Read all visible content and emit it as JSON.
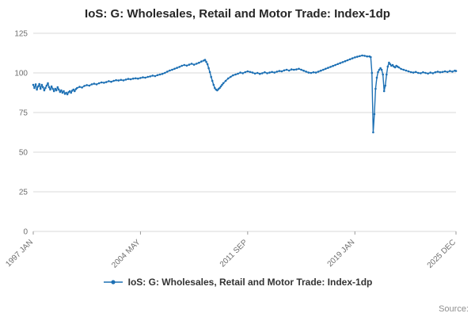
{
  "title": "IoS: G: Wholesales, Retail and Motor Trade: Index-1dp",
  "legend": {
    "label": "IoS: G: Wholesales, Retail and Motor Trade: Index-1dp"
  },
  "source_label": "Source:",
  "colors": {
    "line": "#1d70b4",
    "grid": "#d9d9d9",
    "axis_text": "#6e6e6e",
    "tick": "#9a9a9a"
  },
  "chart_data": {
    "type": "line",
    "title": "IoS: G: Wholesales, Retail and Motor Trade: Index-1dp",
    "xlabel": "",
    "ylabel": "",
    "ylim": [
      0,
      125
    ],
    "yticks": [
      0,
      25,
      50,
      75,
      100,
      125
    ],
    "grid": true,
    "legend_position": "bottom",
    "x_total_months": 347,
    "x_start": "1997 JAN",
    "x_end": "2025 DEC",
    "xticks": [
      {
        "m": 0,
        "label": "1997 JAN"
      },
      {
        "m": 88,
        "label": "2004 MAY"
      },
      {
        "m": 176,
        "label": "2011 SEP"
      },
      {
        "m": 264,
        "label": "2019 JAN"
      },
      {
        "m": 347,
        "label": "2025 DEC"
      }
    ],
    "series": [
      {
        "name": "IoS: G: Wholesales, Retail and Motor Trade: Index-1dp",
        "points": [
          [
            0,
            92.5
          ],
          [
            1,
            90.5
          ],
          [
            2,
            92.8
          ],
          [
            3,
            89.5
          ],
          [
            4,
            91.5
          ],
          [
            5,
            93.0
          ],
          [
            6,
            90.0
          ],
          [
            7,
            92.5
          ],
          [
            8,
            91.0
          ],
          [
            9,
            89.0
          ],
          [
            10,
            90.5
          ],
          [
            11,
            92.0
          ],
          [
            12,
            93.5
          ],
          [
            13,
            91.0
          ],
          [
            14,
            89.5
          ],
          [
            15,
            91.5
          ],
          [
            16,
            90.0
          ],
          [
            17,
            88.5
          ],
          [
            18,
            90.0
          ],
          [
            19,
            89.0
          ],
          [
            20,
            91.0
          ],
          [
            21,
            89.5
          ],
          [
            22,
            88.0
          ],
          [
            23,
            89.0
          ],
          [
            24,
            87.5
          ],
          [
            25,
            88.5
          ],
          [
            26,
            86.8
          ],
          [
            27,
            87.5
          ],
          [
            28,
            86.5
          ],
          [
            29,
            87.8
          ],
          [
            30,
            88.5
          ],
          [
            31,
            87.5
          ],
          [
            32,
            88.8
          ],
          [
            33,
            89.5
          ],
          [
            34,
            88.5
          ],
          [
            35,
            89.8
          ],
          [
            36,
            90.5
          ],
          [
            38,
            91.2
          ],
          [
            40,
            90.8
          ],
          [
            42,
            91.8
          ],
          [
            44,
            92.3
          ],
          [
            46,
            92.0
          ],
          [
            48,
            92.8
          ],
          [
            50,
            93.2
          ],
          [
            52,
            92.8
          ],
          [
            54,
            93.5
          ],
          [
            56,
            94.0
          ],
          [
            58,
            93.8
          ],
          [
            60,
            94.2
          ],
          [
            62,
            94.8
          ],
          [
            64,
            94.4
          ],
          [
            66,
            95.0
          ],
          [
            68,
            95.4
          ],
          [
            70,
            95.2
          ],
          [
            72,
            95.6
          ],
          [
            74,
            95.3
          ],
          [
            76,
            95.8
          ],
          [
            78,
            96.2
          ],
          [
            80,
            96.0
          ],
          [
            82,
            96.4
          ],
          [
            84,
            96.6
          ],
          [
            86,
            96.4
          ],
          [
            88,
            96.8
          ],
          [
            90,
            97.2
          ],
          [
            92,
            97.0
          ],
          [
            94,
            97.5
          ],
          [
            96,
            97.8
          ],
          [
            98,
            98.3
          ],
          [
            100,
            98.0
          ],
          [
            102,
            98.6
          ],
          [
            104,
            99.0
          ],
          [
            106,
            99.4
          ],
          [
            108,
            100.0
          ],
          [
            110,
            100.8
          ],
          [
            112,
            101.5
          ],
          [
            114,
            102.0
          ],
          [
            116,
            102.6
          ],
          [
            118,
            103.2
          ],
          [
            120,
            103.8
          ],
          [
            122,
            104.5
          ],
          [
            124,
            105.0
          ],
          [
            126,
            104.6
          ],
          [
            128,
            105.2
          ],
          [
            130,
            105.8
          ],
          [
            132,
            105.2
          ],
          [
            134,
            105.8
          ],
          [
            136,
            106.4
          ],
          [
            138,
            107.2
          ],
          [
            140,
            107.8
          ],
          [
            141,
            108.2
          ],
          [
            142,
            107.0
          ],
          [
            143,
            105.5
          ],
          [
            144,
            103.0
          ],
          [
            145,
            100.5
          ],
          [
            146,
            97.5
          ],
          [
            147,
            95.0
          ],
          [
            148,
            92.5
          ],
          [
            149,
            90.5
          ],
          [
            150,
            89.5
          ],
          [
            151,
            89.0
          ],
          [
            152,
            89.8
          ],
          [
            153,
            90.5
          ],
          [
            154,
            91.5
          ],
          [
            155,
            92.5
          ],
          [
            156,
            93.5
          ],
          [
            158,
            95.0
          ],
          [
            160,
            96.5
          ],
          [
            162,
            97.5
          ],
          [
            164,
            98.5
          ],
          [
            166,
            99.0
          ],
          [
            168,
            99.5
          ],
          [
            170,
            100.2
          ],
          [
            172,
            99.8
          ],
          [
            174,
            100.5
          ],
          [
            176,
            101.0
          ],
          [
            178,
            100.6
          ],
          [
            180,
            100.2
          ],
          [
            182,
            99.6
          ],
          [
            184,
            100.0
          ],
          [
            186,
            99.4
          ],
          [
            188,
            99.8
          ],
          [
            190,
            100.4
          ],
          [
            192,
            99.8
          ],
          [
            194,
            100.2
          ],
          [
            196,
            100.6
          ],
          [
            198,
            100.2
          ],
          [
            200,
            100.8
          ],
          [
            202,
            101.2
          ],
          [
            204,
            101.0
          ],
          [
            206,
            101.6
          ],
          [
            208,
            102.0
          ],
          [
            210,
            101.5
          ],
          [
            212,
            102.2
          ],
          [
            214,
            102.0
          ],
          [
            216,
            102.2
          ],
          [
            218,
            102.6
          ],
          [
            220,
            102.0
          ],
          [
            222,
            101.4
          ],
          [
            224,
            100.8
          ],
          [
            226,
            100.2
          ],
          [
            228,
            100.0
          ],
          [
            230,
            100.4
          ],
          [
            232,
            100.2
          ],
          [
            234,
            100.8
          ],
          [
            236,
            101.4
          ],
          [
            238,
            102.0
          ],
          [
            240,
            102.6
          ],
          [
            242,
            103.2
          ],
          [
            244,
            103.8
          ],
          [
            246,
            104.4
          ],
          [
            248,
            105.0
          ],
          [
            250,
            105.6
          ],
          [
            252,
            106.2
          ],
          [
            254,
            106.8
          ],
          [
            256,
            107.4
          ],
          [
            258,
            108.0
          ],
          [
            260,
            108.6
          ],
          [
            262,
            109.2
          ],
          [
            264,
            109.8
          ],
          [
            266,
            110.2
          ],
          [
            268,
            110.6
          ],
          [
            270,
            111.0
          ],
          [
            272,
            110.8
          ],
          [
            274,
            110.4
          ],
          [
            276,
            110.4
          ],
          [
            277,
            110.0
          ],
          [
            278,
            100.0
          ],
          [
            279,
            62.5
          ],
          [
            280,
            74.0
          ],
          [
            281,
            90.0
          ],
          [
            282,
            97.0
          ],
          [
            283,
            100.5
          ],
          [
            284,
            102.0
          ],
          [
            285,
            103.0
          ],
          [
            286,
            102.0
          ],
          [
            287,
            99.0
          ],
          [
            288,
            88.5
          ],
          [
            289,
            92.0
          ],
          [
            290,
            99.0
          ],
          [
            291,
            104.0
          ],
          [
            292,
            106.5
          ],
          [
            293,
            105.5
          ],
          [
            294,
            104.5
          ],
          [
            295,
            105.0
          ],
          [
            296,
            104.0
          ],
          [
            297,
            103.5
          ],
          [
            298,
            104.5
          ],
          [
            299,
            104.0
          ],
          [
            300,
            103.5
          ],
          [
            302,
            102.5
          ],
          [
            304,
            102.0
          ],
          [
            306,
            101.5
          ],
          [
            308,
            101.0
          ],
          [
            310,
            100.5
          ],
          [
            312,
            100.2
          ],
          [
            314,
            100.6
          ],
          [
            316,
            100.0
          ],
          [
            318,
            99.8
          ],
          [
            320,
            100.4
          ],
          [
            322,
            100.0
          ],
          [
            324,
            99.6
          ],
          [
            326,
            100.2
          ],
          [
            328,
            99.8
          ],
          [
            330,
            100.4
          ],
          [
            332,
            100.8
          ],
          [
            334,
            100.4
          ],
          [
            336,
            100.6
          ],
          [
            338,
            101.0
          ],
          [
            340,
            100.6
          ],
          [
            342,
            101.2
          ],
          [
            344,
            100.8
          ],
          [
            346,
            101.4
          ],
          [
            347,
            101.2
          ]
        ]
      }
    ]
  }
}
